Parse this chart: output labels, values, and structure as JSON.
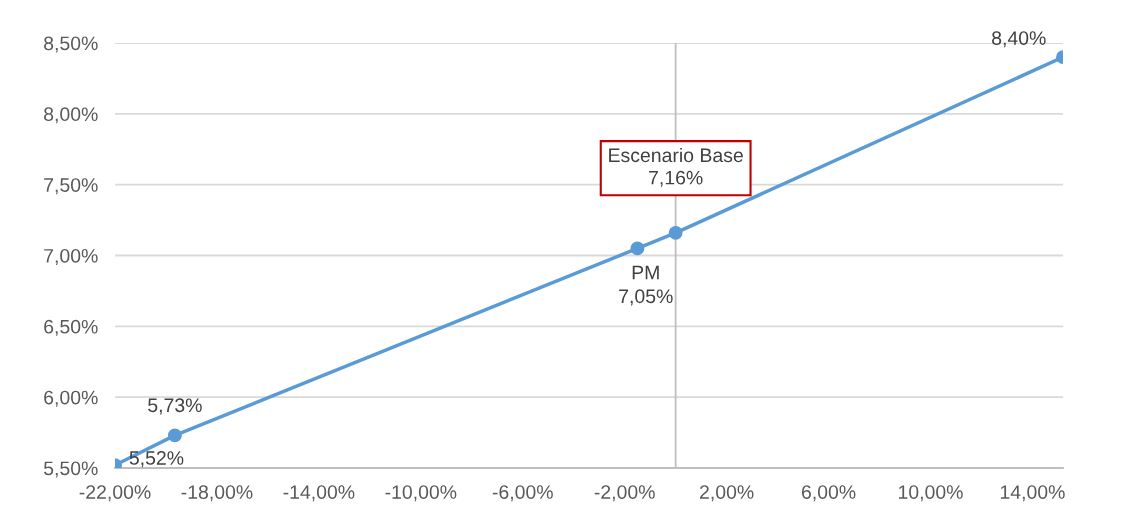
{
  "chart_data": {
    "type": "line",
    "x": [
      -22,
      -19.65,
      -1.5,
      0,
      15.2
    ],
    "series": [
      {
        "color": "#5b9bd5",
        "values": [
          5.52,
          5.73,
          7.05,
          7.16,
          8.4
        ],
        "value_labels": [
          "5,52%",
          "5,73%",
          "PM\n7,05%",
          null,
          "8,40%"
        ]
      }
    ],
    "xlim": [
      -22,
      15.2
    ],
    "xticks": [
      {
        "value": -22,
        "label": "-22,00%"
      },
      {
        "value": -18,
        "label": "-18,00%"
      },
      {
        "value": -14,
        "label": "-14,00%"
      },
      {
        "value": -10,
        "label": "-10,00%"
      },
      {
        "value": -6,
        "label": "-6,00%"
      },
      {
        "value": -2,
        "label": "-2,00%"
      },
      {
        "value": 2,
        "label": "2,00%"
      },
      {
        "value": 6,
        "label": "6,00%"
      },
      {
        "value": 10,
        "label": "10,00%"
      },
      {
        "value": 14,
        "label": "14,00%"
      }
    ],
    "ylim": [
      5.5,
      8.5
    ],
    "yticks": [
      {
        "value": 5.5,
        "label": "5,50%"
      },
      {
        "value": 6,
        "label": "6,00%"
      },
      {
        "value": 6.5,
        "label": "6,50%"
      },
      {
        "value": 7,
        "label": "7,00%"
      },
      {
        "value": 7.5,
        "label": "7,50%"
      },
      {
        "value": 8,
        "label": "8,00%"
      },
      {
        "value": 8.5,
        "label": "8,50%"
      }
    ],
    "grid": "y",
    "marker": "circle",
    "line_style": "solid",
    "ref_lines": [
      {
        "axis": "x",
        "value": 0,
        "color": "#bfbfbf"
      }
    ],
    "annotations": [
      {
        "text": "Escenario Base\n7,16%",
        "x": 0,
        "y": 7.16
      }
    ]
  }
}
